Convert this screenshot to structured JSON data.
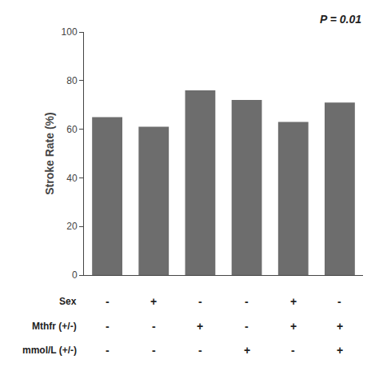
{
  "chart_data": {
    "type": "bar",
    "values": [
      65,
      61,
      76,
      72,
      63,
      71
    ],
    "color": "#6d6d6d",
    "ylabel": "Stroke Rate (%)",
    "ylim": [
      0,
      100
    ],
    "yticks": [
      0,
      20,
      40,
      60,
      80,
      100
    ],
    "annotation": "P = 0.01",
    "row_labels": [
      "Sex",
      "Mthfr (+/-)",
      "mmol/L (+/-)"
    ],
    "row_signs": [
      [
        "-",
        "+",
        "-",
        "-",
        "+",
        "-"
      ],
      [
        "-",
        "-",
        "+",
        "-",
        "+",
        "+"
      ],
      [
        "-",
        "-",
        "-",
        "+",
        "-",
        "+"
      ]
    ],
    "grid": false,
    "tick_labels": "y"
  }
}
